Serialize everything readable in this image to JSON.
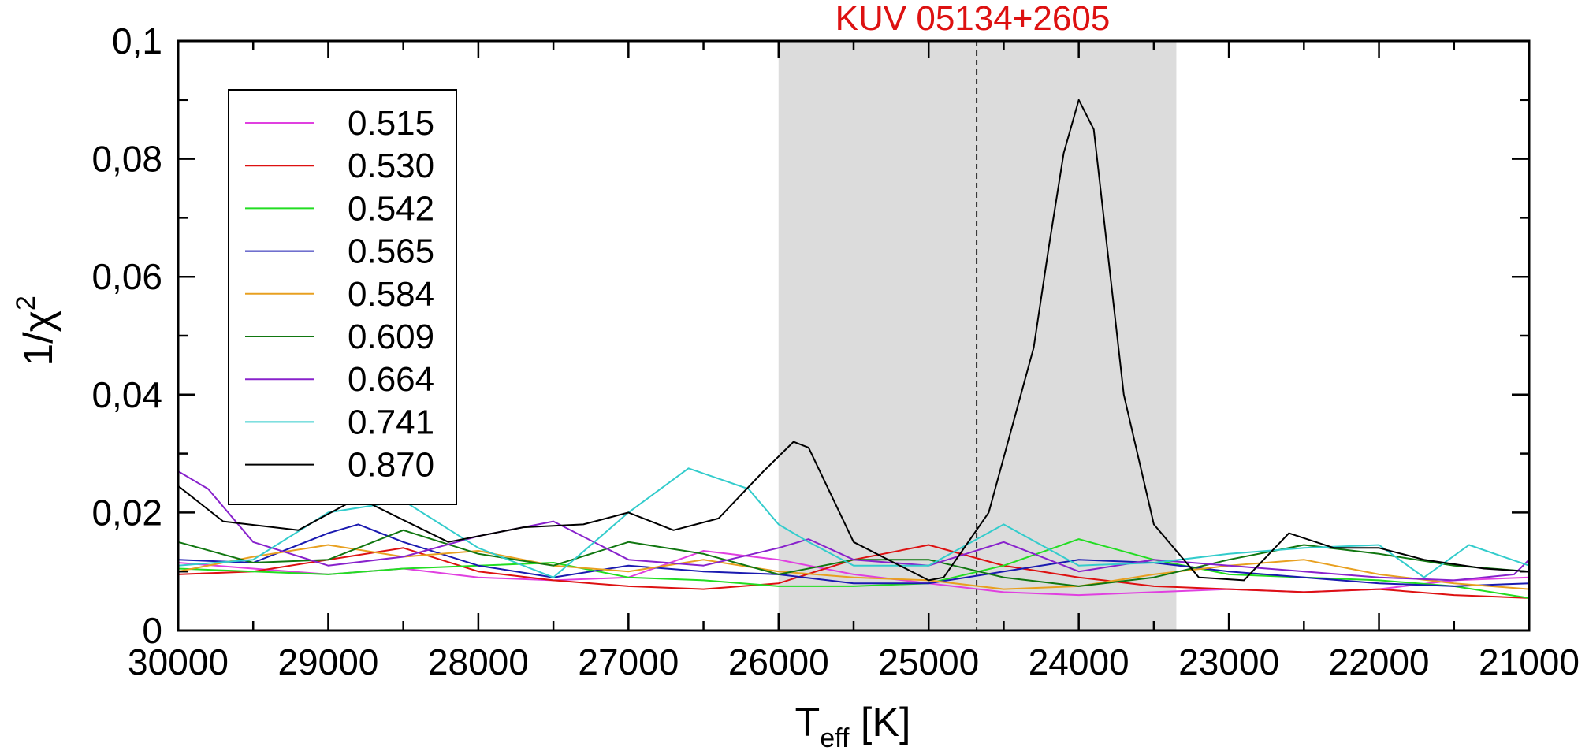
{
  "chart_data": {
    "type": "line",
    "title": "KUV 05134+2605",
    "xlabel": "T",
    "xlabel_sub": "eff",
    "xlabel_unit": " [K]",
    "ylabel": "1/χ",
    "ylabel_sup": "2",
    "xlim": [
      30000,
      21000
    ],
    "ylim": [
      0,
      0.1
    ],
    "x_reversed": true,
    "x_ticks": [
      30000,
      29000,
      28000,
      27000,
      26000,
      25000,
      24000,
      23000,
      22000,
      21000
    ],
    "x_tick_labels": [
      "30000",
      "29000",
      "28000",
      "27000",
      "26000",
      "25000",
      "24000",
      "23000",
      "22000",
      "21000"
    ],
    "y_ticks": [
      0,
      0.02,
      0.04,
      0.06,
      0.08,
      0.1
    ],
    "y_tick_labels": [
      "0",
      "0,02",
      "0,04",
      "0,06",
      "0,08",
      "0,1"
    ],
    "shaded_region": {
      "x_from": 26000,
      "x_to": 23350,
      "color": "#dcdcdc"
    },
    "dashed_line_x": 24680,
    "legend_position": "top-left",
    "series": [
      {
        "name": "0.515",
        "color": "#e040e0",
        "x": [
          30000,
          29500,
          29000,
          28500,
          28000,
          27500,
          27000,
          26500,
          26000,
          25500,
          25000,
          24500,
          24000,
          23500,
          23000,
          22500,
          22000,
          21500,
          21000
        ],
        "y": [
          0.0115,
          0.0105,
          0.0095,
          0.0105,
          0.009,
          0.0085,
          0.009,
          0.0135,
          0.012,
          0.0095,
          0.008,
          0.0065,
          0.006,
          0.0065,
          0.007,
          0.0065,
          0.007,
          0.0085,
          0.009
        ]
      },
      {
        "name": "0.530",
        "color": "#dd1111",
        "x": [
          30000,
          29500,
          29000,
          28500,
          28000,
          27500,
          27000,
          26500,
          26000,
          25500,
          25000,
          24500,
          24000,
          23500,
          23000,
          22500,
          22000,
          21500,
          21000
        ],
        "y": [
          0.0095,
          0.01,
          0.012,
          0.014,
          0.01,
          0.0085,
          0.0075,
          0.007,
          0.008,
          0.012,
          0.0145,
          0.011,
          0.009,
          0.0075,
          0.007,
          0.0065,
          0.007,
          0.006,
          0.0055
        ]
      },
      {
        "name": "0.542",
        "color": "#22dd22",
        "x": [
          30000,
          29500,
          29000,
          28500,
          28000,
          27500,
          27000,
          26500,
          26000,
          25500,
          25000,
          24500,
          24000,
          23500,
          23000,
          22500,
          22000,
          21500,
          21000
        ],
        "y": [
          0.0105,
          0.01,
          0.0095,
          0.0105,
          0.011,
          0.0115,
          0.009,
          0.0085,
          0.0075,
          0.0075,
          0.008,
          0.011,
          0.0155,
          0.012,
          0.0095,
          0.009,
          0.0085,
          0.0075,
          0.0055
        ]
      },
      {
        "name": "0.565",
        "color": "#1a1ab0",
        "x": [
          30000,
          29500,
          29000,
          28800,
          28500,
          28000,
          27500,
          27000,
          26500,
          26000,
          25500,
          25000,
          24500,
          24000,
          23500,
          23000,
          22500,
          22000,
          21500,
          21000
        ],
        "y": [
          0.012,
          0.0115,
          0.0165,
          0.018,
          0.015,
          0.011,
          0.009,
          0.011,
          0.01,
          0.0095,
          0.008,
          0.008,
          0.01,
          0.012,
          0.0115,
          0.01,
          0.009,
          0.008,
          0.0075,
          0.008
        ]
      },
      {
        "name": "0.584",
        "color": "#e8a020",
        "x": [
          30000,
          29500,
          29000,
          28500,
          28000,
          27500,
          27000,
          26500,
          26000,
          25500,
          25000,
          24500,
          24000,
          23500,
          23000,
          22500,
          22000,
          21500,
          21000
        ],
        "y": [
          0.01,
          0.0125,
          0.0145,
          0.0125,
          0.0135,
          0.011,
          0.01,
          0.012,
          0.01,
          0.009,
          0.0085,
          0.007,
          0.0075,
          0.0095,
          0.011,
          0.012,
          0.0095,
          0.008,
          0.007
        ]
      },
      {
        "name": "0.609",
        "color": "#117711",
        "x": [
          30000,
          29500,
          29000,
          28500,
          28000,
          27500,
          27000,
          26500,
          26000,
          25500,
          25000,
          24500,
          24000,
          23500,
          23000,
          22500,
          22000,
          21500,
          21000
        ],
        "y": [
          0.015,
          0.0115,
          0.012,
          0.017,
          0.013,
          0.011,
          0.015,
          0.013,
          0.0095,
          0.012,
          0.012,
          0.009,
          0.0075,
          0.009,
          0.012,
          0.0145,
          0.013,
          0.011,
          0.01
        ]
      },
      {
        "name": "0.664",
        "color": "#8822cc",
        "x": [
          30000,
          29800,
          29500,
          29000,
          28500,
          28000,
          27500,
          27000,
          26500,
          26000,
          25800,
          25500,
          25000,
          24500,
          24000,
          23500,
          23000,
          22500,
          22000,
          21500,
          21100,
          21000
        ],
        "y": [
          0.027,
          0.024,
          0.015,
          0.011,
          0.0125,
          0.016,
          0.0185,
          0.012,
          0.011,
          0.014,
          0.0155,
          0.012,
          0.011,
          0.015,
          0.01,
          0.012,
          0.011,
          0.01,
          0.009,
          0.0085,
          0.0095,
          0.012
        ]
      },
      {
        "name": "0.741",
        "color": "#33cccc",
        "x": [
          30000,
          29500,
          29000,
          28500,
          28000,
          27500,
          27000,
          26600,
          26200,
          26000,
          25800,
          25500,
          25000,
          24500,
          24000,
          23500,
          23000,
          22500,
          22000,
          21700,
          21400,
          21000
        ],
        "y": [
          0.011,
          0.012,
          0.02,
          0.022,
          0.014,
          0.009,
          0.02,
          0.0275,
          0.024,
          0.018,
          0.015,
          0.011,
          0.011,
          0.018,
          0.011,
          0.0115,
          0.013,
          0.014,
          0.0145,
          0.009,
          0.0145,
          0.011
        ]
      },
      {
        "name": "0.870",
        "color": "#000000",
        "x": [
          30000,
          29700,
          29200,
          28800,
          28200,
          27700,
          27300,
          27000,
          26700,
          26400,
          26100,
          25900,
          25800,
          25500,
          25000,
          24900,
          24600,
          24300,
          24200,
          24100,
          24000,
          23900,
          23700,
          23500,
          23200,
          22900,
          22600,
          22300,
          22000,
          21700,
          21300,
          21000
        ],
        "y": [
          0.0245,
          0.0185,
          0.017,
          0.0225,
          0.015,
          0.0175,
          0.018,
          0.02,
          0.017,
          0.019,
          0.027,
          0.032,
          0.031,
          0.015,
          0.0085,
          0.009,
          0.02,
          0.048,
          0.065,
          0.081,
          0.09,
          0.085,
          0.04,
          0.018,
          0.009,
          0.0085,
          0.0165,
          0.014,
          0.014,
          0.012,
          0.0105,
          0.01
        ]
      }
    ]
  }
}
